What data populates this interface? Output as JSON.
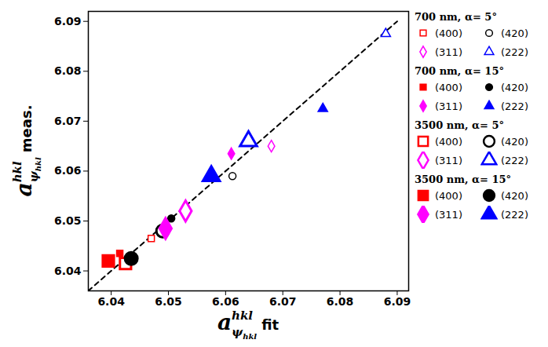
{
  "chart_data": {
    "type": "scatter",
    "x_label": {
      "base": "a",
      "sup": "hkl",
      "sub": "ψ",
      "subsub": "hkl",
      "suffix": "fit"
    },
    "y_label": {
      "base": "a",
      "sup": "hkl",
      "sub": "ψ",
      "subsub": "hkl",
      "suffix": "meas."
    },
    "xlim": [
      6.036,
      6.092
    ],
    "ylim": [
      6.036,
      6.092
    ],
    "xticks": [
      6.04,
      6.05,
      6.06,
      6.07,
      6.08,
      6.09
    ],
    "yticks": [
      6.04,
      6.05,
      6.06,
      6.07,
      6.08,
      6.09
    ],
    "grid": false,
    "legend": "right",
    "reference_line": {
      "x": [
        6.036,
        6.09
      ],
      "y": [
        6.036,
        6.09
      ],
      "line_style": "dashed",
      "color": "#000000"
    },
    "groups": [
      {
        "title": "700 nm, α= 5°",
        "series": [
          {
            "name": "(400)",
            "color": "#ff0000",
            "marker": "open_square",
            "x": [
              6.047
            ],
            "y": [
              6.0465
            ]
          },
          {
            "name": "(420)",
            "color": "#000000",
            "marker": "open_circle",
            "x": [
              6.0612
            ],
            "y": [
              6.059
            ]
          },
          {
            "name": "(311)",
            "color": "#ff00ff",
            "marker": "open_diamond",
            "x": [
              6.068
            ],
            "y": [
              6.065
            ]
          },
          {
            "name": "(222)",
            "color": "#0000ff",
            "marker": "open_triangle",
            "x": [
              6.088
            ],
            "y": [
              6.0875
            ]
          }
        ]
      },
      {
        "title": "700 nm, α= 15°",
        "series": [
          {
            "name": "(400)",
            "color": "#ff0000",
            "marker": "square",
            "x": [
              6.0415
            ],
            "y": [
              6.0435
            ]
          },
          {
            "name": "(420)",
            "color": "#000000",
            "marker": "circle",
            "x": [
              6.0505
            ],
            "y": [
              6.0505
            ]
          },
          {
            "name": "(311)",
            "color": "#ff00ff",
            "marker": "diamond",
            "x": [
              6.061
            ],
            "y": [
              6.0635
            ]
          },
          {
            "name": "(222)",
            "color": "#0000ff",
            "marker": "triangle",
            "x": [
              6.077
            ],
            "y": [
              6.0725
            ]
          }
        ]
      },
      {
        "title": "3500 nm, α= 5°",
        "series": [
          {
            "name": "(400)",
            "color": "#ff0000",
            "marker": "open_square",
            "x": [
              6.0425
            ],
            "y": [
              6.0415
            ]
          },
          {
            "name": "(420)",
            "color": "#000000",
            "marker": "open_circle",
            "x": [
              6.049
            ],
            "y": [
              6.048
            ]
          },
          {
            "name": "(311)",
            "color": "#ff00ff",
            "marker": "open_diamond",
            "x": [
              6.053
            ],
            "y": [
              6.052
            ]
          },
          {
            "name": "(222)",
            "color": "#0000ff",
            "marker": "open_triangle",
            "x": [
              6.064
            ],
            "y": [
              6.066
            ]
          }
        ]
      },
      {
        "title": "3500 nm, α= 15°",
        "series": [
          {
            "name": "(400)",
            "color": "#ff0000",
            "marker": "square",
            "x": [
              6.0395
            ],
            "y": [
              6.042
            ]
          },
          {
            "name": "(420)",
            "color": "#000000",
            "marker": "circle",
            "x": [
              6.0435
            ],
            "y": [
              6.0425
            ]
          },
          {
            "name": "(311)",
            "color": "#ff00ff",
            "marker": "diamond",
            "x": [
              6.0495
            ],
            "y": [
              6.0485
            ]
          },
          {
            "name": "(222)",
            "color": "#0000ff",
            "marker": "triangle",
            "x": [
              6.0575
            ],
            "y": [
              6.059
            ]
          }
        ]
      }
    ]
  }
}
